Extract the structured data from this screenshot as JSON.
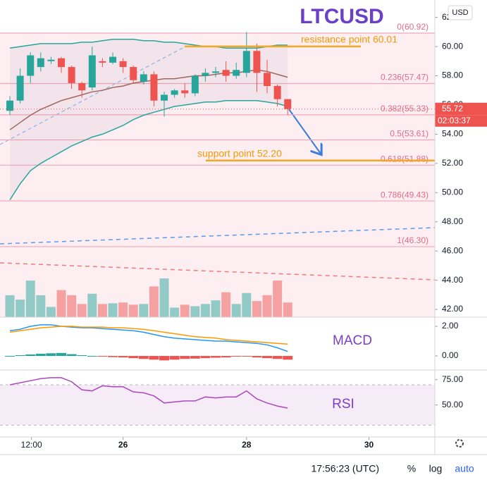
{
  "chart_data": [
    {
      "type": "candlestick",
      "title": "LTCUSD",
      "currency": "USD",
      "open": [
        55.6,
        56.3,
        58.0,
        58.6,
        59.0,
        59.2,
        58.6,
        57.5,
        57.2,
        59.0,
        58.9,
        59.0,
        58.6,
        57.6,
        58.1,
        56.3,
        56.7,
        57.0,
        56.8,
        58.0,
        58.2,
        58.4,
        58.0,
        58.2,
        59.7,
        58.2,
        57.3,
        56.4
      ],
      "high": [
        56.6,
        58.5,
        59.6,
        59.6,
        59.3,
        59.3,
        58.7,
        57.6,
        60.0,
        59.2,
        59.6,
        59.2,
        58.7,
        58.3,
        58.3,
        56.9,
        57.1,
        57.5,
        58.1,
        58.5,
        58.6,
        59.0,
        58.9,
        61.0,
        60.2,
        59.1,
        57.4,
        56.4
      ],
      "low": [
        55.3,
        56.1,
        57.5,
        58.3,
        58.8,
        58.2,
        57.1,
        56.5,
        57.0,
        58.6,
        58.8,
        58.2,
        57.5,
        57.4,
        55.9,
        55.2,
        56.5,
        56.5,
        56.6,
        57.6,
        57.9,
        57.6,
        57.8,
        57.9,
        56.9,
        56.8,
        55.9,
        55.3
      ],
      "close": [
        56.3,
        58.0,
        59.4,
        59.2,
        59.1,
        58.6,
        57.5,
        57.0,
        59.4,
        58.9,
        59.3,
        58.6,
        57.7,
        58.1,
        56.3,
        56.7,
        57.0,
        56.8,
        58.0,
        58.2,
        58.3,
        58.0,
        58.4,
        59.7,
        58.2,
        57.3,
        56.4,
        55.72
      ],
      "volume": [
        30,
        24,
        50,
        30,
        14,
        37,
        30,
        18,
        32,
        18,
        19,
        20,
        17,
        18,
        42,
        53,
        13,
        17,
        15,
        18,
        23,
        34,
        18,
        33,
        22,
        30,
        50,
        20
      ],
      "up_color": "#26a69a",
      "down_color": "#ef5350",
      "bands": [
        {
          "name": "upper",
          "color": "#26a69a",
          "values": [
            59.9,
            60.0,
            60.1,
            60.2,
            60.2,
            60.2,
            60.2,
            60.3,
            60.3,
            60.4,
            60.5,
            60.5,
            60.5,
            60.4,
            60.4,
            60.3,
            60.3,
            60.2,
            60.1,
            60.0,
            60.0,
            59.9,
            59.9,
            59.9,
            59.9,
            60.0,
            60.1,
            60.1
          ]
        },
        {
          "name": "basis",
          "color": "#a1665e",
          "values": [
            54.3,
            54.8,
            55.3,
            55.7,
            56.0,
            56.3,
            56.5,
            56.7,
            56.9,
            57.0,
            57.2,
            57.3,
            57.5,
            57.6,
            57.7,
            57.8,
            57.8,
            57.9,
            58.0,
            58.0,
            58.1,
            58.2,
            58.2,
            58.3,
            58.4,
            58.3,
            58.1,
            57.9
          ]
        },
        {
          "name": "lower",
          "color": "#26a69a",
          "values": [
            49.5,
            50.6,
            51.5,
            52.0,
            52.4,
            52.8,
            53.2,
            53.5,
            53.8,
            54.0,
            54.3,
            54.6,
            55.0,
            55.3,
            55.5,
            55.7,
            55.9,
            56.0,
            56.1,
            56.2,
            56.2,
            56.3,
            56.3,
            56.3,
            56.3,
            56.2,
            56.1,
            55.9
          ]
        }
      ],
      "fib_levels": [
        {
          "value": 60.92,
          "label": "0(60.92)"
        },
        {
          "value": 57.47,
          "label": "0.236(57.47)"
        },
        {
          "value": 55.33,
          "label": "0.382(55.33)"
        },
        {
          "value": 53.61,
          "label": "0.5(53.61)"
        },
        {
          "value": 51.88,
          "label": "0.618(51.88)"
        },
        {
          "value": 49.43,
          "label": "0.786(49.43)"
        },
        {
          "value": 46.3,
          "label": "1(46.30)"
        }
      ],
      "annotations": [
        {
          "text": "resistance point 60.01",
          "value": 60.01
        },
        {
          "text": "support point 52.20",
          "value": 52.2
        }
      ],
      "last_price": {
        "value": 55.72,
        "label": "55.72"
      },
      "countdown": "02:03:37",
      "ylim": [
        41.47,
        63.19
      ],
      "yticks": [
        {
          "value": 42,
          "label": "42.00"
        },
        {
          "value": 44,
          "label": "44.00"
        },
        {
          "value": 46,
          "label": "46.00"
        },
        {
          "value": 48,
          "label": "48.00"
        },
        {
          "value": 50,
          "label": "50.00"
        },
        {
          "value": 52,
          "label": "52.00"
        },
        {
          "value": 54,
          "label": "54.00"
        },
        {
          "value": 56,
          "label": "56.00"
        },
        {
          "value": 58,
          "label": "58.00"
        },
        {
          "value": 60,
          "label": "60.00"
        },
        {
          "value": 62,
          "label": "62"
        }
      ],
      "xlim": [
        -0.96,
        41.3
      ],
      "xticks": [
        {
          "value": 2.1,
          "label": "12:00"
        },
        {
          "value": 11,
          "label": "26"
        },
        {
          "value": 23,
          "label": "28"
        },
        {
          "value": 34.9,
          "label": "30"
        }
      ]
    },
    {
      "type": "macd",
      "title": "MACD",
      "histogram": [
        0.0,
        0.05,
        0.1,
        0.15,
        0.18,
        0.2,
        0.12,
        0.05,
        0.0,
        -0.05,
        -0.08,
        -0.1,
        -0.15,
        -0.2,
        -0.25,
        -0.3,
        -0.25,
        -0.2,
        -0.18,
        -0.15,
        -0.12,
        -0.1,
        -0.05,
        -0.03,
        -0.1,
        -0.15,
        -0.2,
        -0.25
      ],
      "series": [
        {
          "name": "MACD",
          "color": "#2196f3",
          "values": [
            1.7,
            1.8,
            2.0,
            2.1,
            2.1,
            2.0,
            1.95,
            1.9,
            1.9,
            1.85,
            1.8,
            1.75,
            1.7,
            1.6,
            1.45,
            1.3,
            1.2,
            1.15,
            1.1,
            1.05,
            1.0,
            1.0,
            0.95,
            0.9,
            0.85,
            0.75,
            0.55,
            0.3
          ]
        },
        {
          "name": "Signal",
          "color": "#ff9800",
          "values": [
            1.6,
            1.7,
            1.8,
            1.9,
            1.95,
            2.0,
            2.0,
            1.95,
            1.95,
            1.95,
            1.9,
            1.9,
            1.85,
            1.8,
            1.7,
            1.6,
            1.5,
            1.4,
            1.3,
            1.25,
            1.2,
            1.1,
            1.05,
            1.0,
            0.95,
            0.9,
            0.85,
            0.8
          ]
        }
      ],
      "pos_color": "#26a69a",
      "neg_color": "#ef5350",
      "ylim": [
        -0.95,
        2.62
      ],
      "yticks": [
        {
          "value": 0,
          "label": "0.00"
        },
        {
          "value": 2,
          "label": "2.00"
        }
      ]
    },
    {
      "type": "rsi",
      "title": "RSI",
      "color": "#ab47bc",
      "values": [
        70,
        72,
        74,
        76,
        77,
        77,
        73,
        65,
        64,
        69,
        68,
        68,
        63,
        62,
        59,
        52,
        53,
        54,
        54,
        58,
        57,
        58,
        58,
        64,
        56,
        52,
        49,
        47
      ],
      "band": [
        30,
        70
      ],
      "ylim": [
        18.4,
        84.6
      ],
      "yticks": [
        {
          "value": 50,
          "label": "50.00"
        },
        {
          "value": 75,
          "label": "75.00"
        }
      ]
    }
  ],
  "status_bar": {
    "time": "17:56:23 (UTC)",
    "percent": "%",
    "log": "log",
    "auto": "auto"
  }
}
